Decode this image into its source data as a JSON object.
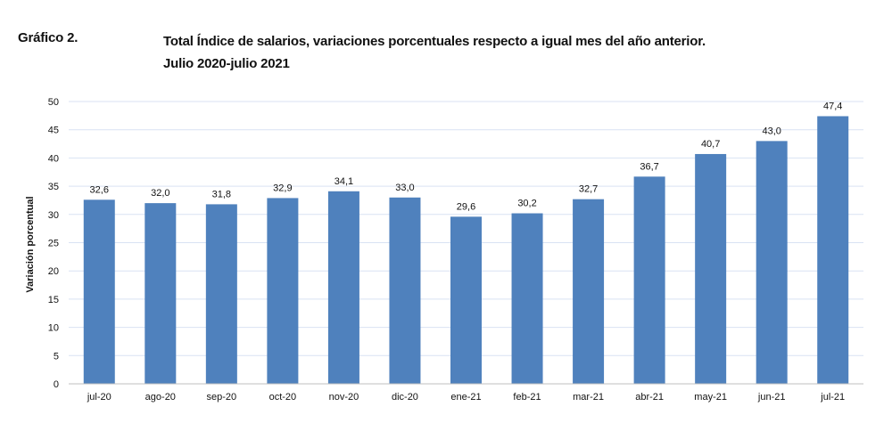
{
  "figure": {
    "label": "Gráfico 2.",
    "title_line1": "Total Índice de salarios, variaciones porcentuales respecto a igual mes del año anterior.",
    "title_line2": "Julio 2020-julio 2021"
  },
  "chart_data": {
    "type": "bar",
    "categories": [
      "jul-20",
      "ago-20",
      "sep-20",
      "oct-20",
      "nov-20",
      "dic-20",
      "ene-21",
      "feb-21",
      "mar-21",
      "abr-21",
      "may-21",
      "jun-21",
      "jul-21"
    ],
    "values": [
      32.6,
      32.0,
      31.8,
      32.9,
      34.1,
      33.0,
      29.6,
      30.2,
      32.7,
      36.7,
      40.7,
      43.0,
      47.4
    ],
    "value_labels": [
      "32,6",
      "32,0",
      "31,8",
      "32,9",
      "34,1",
      "33,0",
      "29,6",
      "30,2",
      "32,7",
      "36,7",
      "40,7",
      "43,0",
      "47,4"
    ],
    "ylabel": "Variación porcentual",
    "xlabel": "",
    "ylim": [
      0,
      50
    ],
    "yticks": [
      0,
      5,
      10,
      15,
      20,
      25,
      30,
      35,
      40,
      45,
      50
    ],
    "grid": true,
    "bar_color": "#4f81bd",
    "grid_color": "#d9e2f3"
  }
}
